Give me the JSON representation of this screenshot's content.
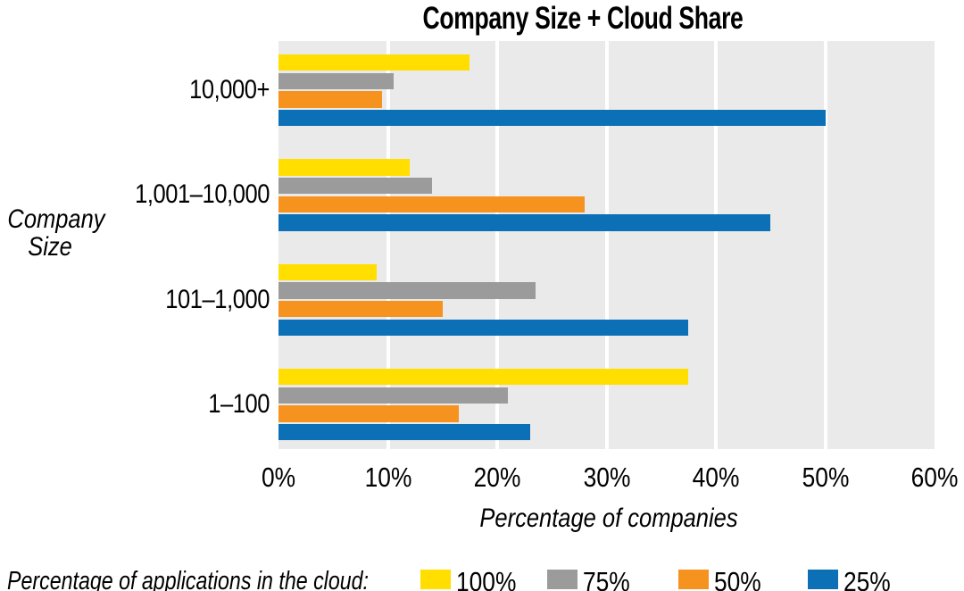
{
  "title": "Company Size + Cloud Share",
  "axis": {
    "x_title": "Percentage of companies",
    "y_title_lines": [
      "Company",
      "Size"
    ]
  },
  "legend_intro": "Percentage of applications in the cloud:",
  "colors": {
    "background": "#FFFFFF",
    "plot_background": "#EAEAEA",
    "gridline": "#FFFFFF",
    "text": "#000000"
  },
  "chart_data": {
    "type": "bar",
    "orientation": "horizontal",
    "title": "Company Size + Cloud Share",
    "xlabel": "Percentage of companies",
    "ylabel": "Company Size",
    "categories": [
      "10,000+",
      "1,001–10,000",
      "101–1,000",
      "1–100"
    ],
    "series": [
      {
        "name": "100%",
        "color": "#FFDE00",
        "values": [
          17.5,
          12,
          9,
          37.5
        ]
      },
      {
        "name": "75%",
        "color": "#9B9B9B",
        "values": [
          10.5,
          14,
          23.5,
          21
        ]
      },
      {
        "name": "50%",
        "color": "#F6921E",
        "values": [
          9.5,
          28,
          15,
          16.5
        ]
      },
      {
        "name": "25%",
        "color": "#0C70B7",
        "values": [
          50,
          45,
          37.5,
          23
        ]
      }
    ],
    "xlim": [
      0,
      60
    ],
    "x_tick_labels": [
      "0%",
      "10%",
      "20%",
      "30%",
      "40%",
      "50%",
      "60%"
    ],
    "grid": true,
    "legend_position": "bottom"
  }
}
